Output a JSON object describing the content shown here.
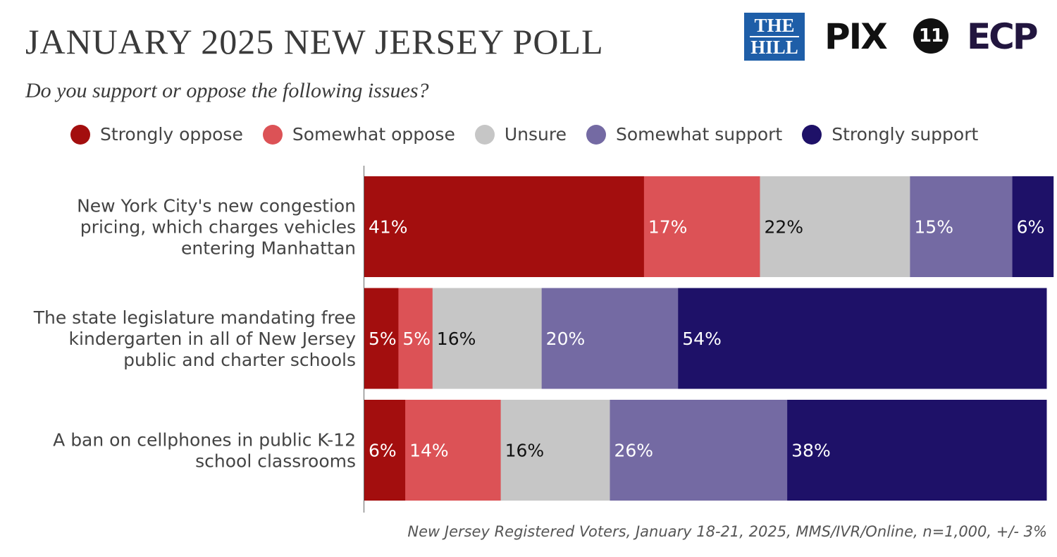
{
  "header": {
    "title": "JANUARY 2025 NEW JERSEY POLL",
    "subtitle": "Do you support or oppose the following issues?"
  },
  "logos": {
    "the_hill_line1": "THE",
    "the_hill_line2": "HILL",
    "pix_text": "PIX",
    "pix_number": "11",
    "ecp_text": "ECP"
  },
  "colors": {
    "strongly_oppose": "#a30e0e",
    "somewhat_oppose": "#dc5256",
    "unsure": "#c6c6c6",
    "somewhat_support": "#746aa3",
    "strongly_support": "#1e1168"
  },
  "footer": {
    "note": "New Jersey Registered Voters, January 18-21, 2025, MMS/IVR/Online, n=1,000, +/- 3%"
  },
  "chart_data": {
    "type": "bar",
    "orientation": "horizontal",
    "stacked": true,
    "title": "JANUARY 2025 NEW JERSEY POLL",
    "subtitle": "Do you support or oppose the following issues?",
    "legend_position": "top",
    "xlim": [
      0,
      100
    ],
    "categories": [
      [
        "New York City's new congestion",
        "pricing, which charges vehicles",
        "entering Manhattan"
      ],
      [
        "The state legislature mandating free",
        "kindergarten in all of New Jersey",
        "public and charter schools"
      ],
      [
        "A ban on cellphones in public K-12",
        "school classrooms"
      ]
    ],
    "series": [
      {
        "name": "Strongly oppose",
        "color": "#a30e0e",
        "label_color": "#ffffff",
        "values": [
          41,
          5,
          6
        ]
      },
      {
        "name": "Somewhat oppose",
        "color": "#dc5256",
        "label_color": "#ffffff",
        "values": [
          17,
          5,
          14
        ]
      },
      {
        "name": "Unsure",
        "color": "#c6c6c6",
        "label_color": "#111111",
        "values": [
          22,
          16,
          16
        ]
      },
      {
        "name": "Somewhat support",
        "color": "#746aa3",
        "label_color": "#ffffff",
        "values": [
          15,
          20,
          26
        ]
      },
      {
        "name": "Strongly support",
        "color": "#1e1168",
        "label_color": "#ffffff",
        "values": [
          6,
          54,
          38
        ]
      }
    ]
  }
}
